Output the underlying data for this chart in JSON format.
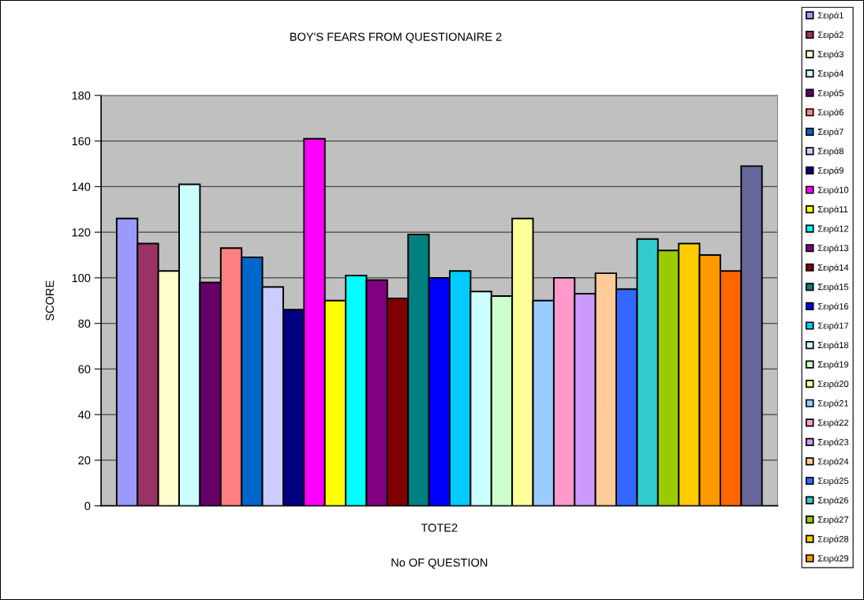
{
  "chart_data": {
    "type": "bar",
    "title": "BOY'S FEARS FROM QUESTIONAIRE 2",
    "xlabel": "No OF QUESTION",
    "ylabel": "SCORE",
    "categories": [
      "TOTE2"
    ],
    "series": [
      {
        "name": "Σειρά1",
        "color": "#9999ff",
        "values": [
          126
        ]
      },
      {
        "name": "Σειρά2",
        "color": "#993366",
        "values": [
          115
        ]
      },
      {
        "name": "Σειρά3",
        "color": "#ffffcc",
        "values": [
          103
        ]
      },
      {
        "name": "Σειρά4",
        "color": "#ccffff",
        "values": [
          141
        ]
      },
      {
        "name": "Σειρά5",
        "color": "#660066",
        "values": [
          98
        ]
      },
      {
        "name": "Σειρά6",
        "color": "#ff8080",
        "values": [
          113
        ]
      },
      {
        "name": "Σειρά7",
        "color": "#0066cc",
        "values": [
          109
        ]
      },
      {
        "name": "Σειρά8",
        "color": "#ccccff",
        "values": [
          96
        ]
      },
      {
        "name": "Σειρά9",
        "color": "#000080",
        "values": [
          86
        ]
      },
      {
        "name": "Σειρά10",
        "color": "#ff00ff",
        "values": [
          161
        ]
      },
      {
        "name": "Σειρά11",
        "color": "#ffff00",
        "values": [
          90
        ]
      },
      {
        "name": "Σειρά12",
        "color": "#00ffff",
        "values": [
          101
        ]
      },
      {
        "name": "Σειρά13",
        "color": "#800080",
        "values": [
          99
        ]
      },
      {
        "name": "Σειρά14",
        "color": "#800000",
        "values": [
          91
        ]
      },
      {
        "name": "Σειρά15",
        "color": "#008080",
        "values": [
          119
        ]
      },
      {
        "name": "Σειρά16",
        "color": "#0000ff",
        "values": [
          100
        ]
      },
      {
        "name": "Σειρά17",
        "color": "#00ccff",
        "values": [
          103
        ]
      },
      {
        "name": "Σειρά18",
        "color": "#ccffff",
        "values": [
          94
        ]
      },
      {
        "name": "Σειρά19",
        "color": "#ccffcc",
        "values": [
          92
        ]
      },
      {
        "name": "Σειρά20",
        "color": "#ffff99",
        "values": [
          126
        ]
      },
      {
        "name": "Σειρά21",
        "color": "#99ccff",
        "values": [
          90
        ]
      },
      {
        "name": "Σειρά22",
        "color": "#ff99cc",
        "values": [
          100
        ]
      },
      {
        "name": "Σειρά23",
        "color": "#cc99ff",
        "values": [
          93
        ]
      },
      {
        "name": "Σειρά24",
        "color": "#ffcc99",
        "values": [
          102
        ]
      },
      {
        "name": "Σειρά25",
        "color": "#3366ff",
        "values": [
          95
        ]
      },
      {
        "name": "Σειρά26",
        "color": "#33cccc",
        "values": [
          117
        ]
      },
      {
        "name": "Σειρά27",
        "color": "#99cc00",
        "values": [
          112
        ]
      },
      {
        "name": "Σειρά28",
        "color": "#ffcc00",
        "values": [
          115
        ]
      },
      {
        "name": "Σειρά29",
        "color": "#ff9900",
        "values": [
          110
        ]
      },
      {
        "color": "#ff6600",
        "values": [
          103
        ]
      },
      {
        "color": "#666699",
        "values": [
          149
        ]
      }
    ],
    "ylim": [
      0,
      180
    ],
    "yticks": [
      0,
      20,
      40,
      60,
      80,
      100,
      120,
      140,
      160,
      180
    ],
    "grid": "y",
    "legend": "right"
  }
}
